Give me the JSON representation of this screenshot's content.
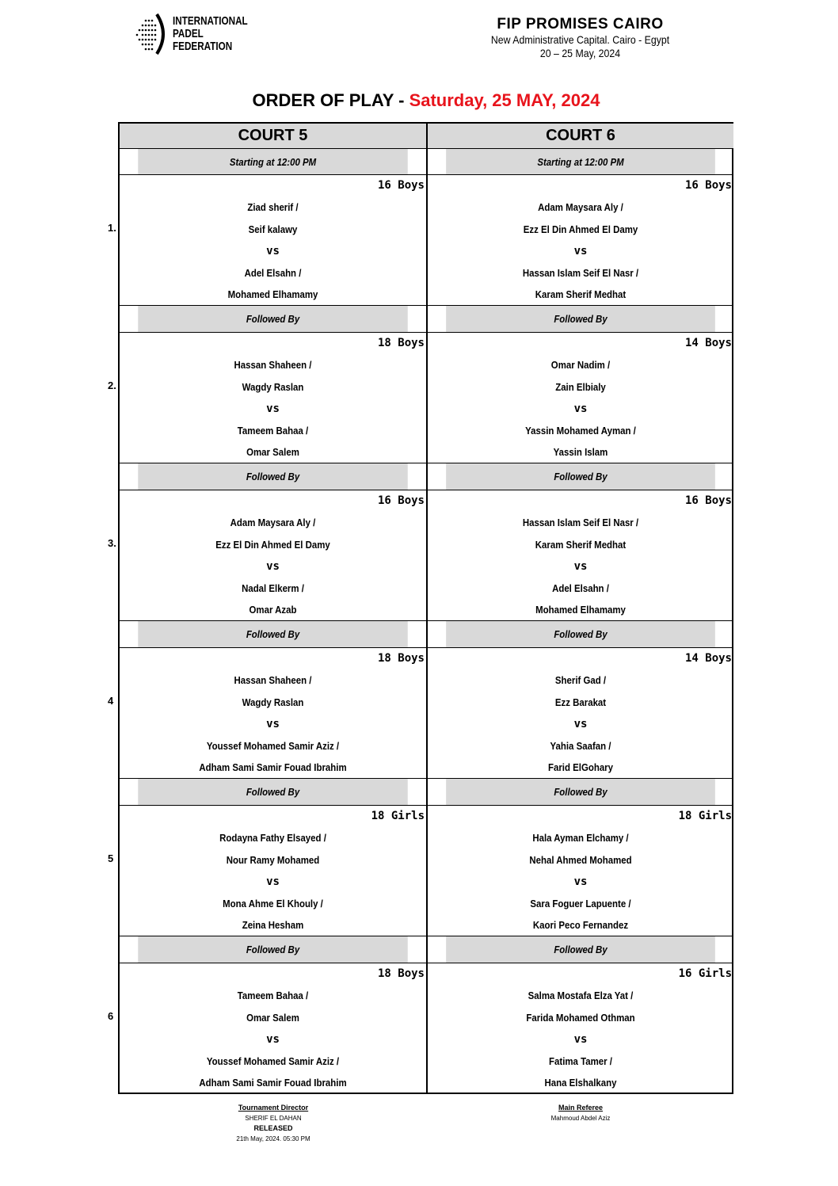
{
  "header": {
    "logo_text": [
      "INTERNATIONAL",
      "PADEL",
      "FEDERATION"
    ],
    "event": "FIP PROMISES CAIRO",
    "venue": "New Administrative Capital. Cairo - Egypt",
    "dates": "20 – 25 May, 2024"
  },
  "title": {
    "prefix": "ORDER OF PLAY - ",
    "date": "Saturday, 25 MAY, 2024",
    "date_color": "#e8141c"
  },
  "courts": [
    {
      "name": "COURT 5",
      "start": "Starting at 12:00 PM"
    },
    {
      "name": "COURT 6",
      "start": "Starting at 12:00 PM"
    }
  ],
  "followed_by": "Followed By",
  "vs": "vs",
  "slots": [
    {
      "number": "1.",
      "matches": [
        {
          "category": "16 Boys",
          "team1": [
            "Ziad sherif /",
            "Seif kalawy"
          ],
          "team2": [
            "Adel Elsahn /",
            "Mohamed Elhamamy"
          ]
        },
        {
          "category": "16 Boys",
          "team1": [
            "Adam Maysara Aly /",
            "Ezz El Din Ahmed El Damy"
          ],
          "team2": [
            "Hassan Islam Seif El Nasr /",
            "Karam Sherif Medhat"
          ]
        }
      ]
    },
    {
      "number": "2.",
      "matches": [
        {
          "category": "18 Boys",
          "team1": [
            "Hassan Shaheen /",
            "Wagdy Raslan"
          ],
          "team2": [
            "Tameem Bahaa /",
            "Omar Salem"
          ]
        },
        {
          "category": "14 Boys",
          "team1": [
            "Omar Nadim /",
            "Zain Elbialy"
          ],
          "team2": [
            "Yassin Mohamed Ayman /",
            "Yassin Islam"
          ]
        }
      ]
    },
    {
      "number": "3.",
      "matches": [
        {
          "category": "16 Boys",
          "team1": [
            "Adam Maysara Aly /",
            "Ezz El Din Ahmed El Damy"
          ],
          "team2": [
            "Nadal Elkerm /",
            "Omar Azab"
          ]
        },
        {
          "category": "16 Boys",
          "team1": [
            "Hassan Islam Seif El Nasr /",
            "Karam Sherif Medhat"
          ],
          "team2": [
            "Adel Elsahn /",
            "Mohamed Elhamamy"
          ]
        }
      ]
    },
    {
      "number": "4",
      "matches": [
        {
          "category": "18 Boys",
          "team1": [
            "Hassan Shaheen /",
            "Wagdy Raslan"
          ],
          "team2": [
            "Youssef Mohamed Samir Aziz /",
            "Adham Sami Samir Fouad Ibrahim"
          ]
        },
        {
          "category": "14 Boys",
          "team1": [
            "Sherif Gad /",
            "Ezz Barakat"
          ],
          "team2": [
            "Yahia Saafan /",
            "Farid ElGohary"
          ]
        }
      ]
    },
    {
      "number": "5",
      "matches": [
        {
          "category": "18 Girls",
          "team1": [
            "Rodayna Fathy Elsayed /",
            "Nour Ramy Mohamed"
          ],
          "team2": [
            "Mona Ahme El Khouly /",
            "Zeina Hesham"
          ]
        },
        {
          "category": "18 Girls",
          "team1": [
            "Hala Ayman Elchamy /",
            "Nehal Ahmed Mohamed"
          ],
          "team2": [
            "Sara Foguer Lapuente /",
            "Kaori Peco Fernandez"
          ]
        }
      ]
    },
    {
      "number": "6",
      "matches": [
        {
          "category": "18 Boys",
          "team1": [
            "Tameem Bahaa /",
            "Omar Salem"
          ],
          "team2": [
            "Youssef Mohamed Samir Aziz /",
            "Adham Sami Samir Fouad Ibrahim"
          ]
        },
        {
          "category": "16 Girls",
          "team1": [
            "Salma Mostafa Elza Yat /",
            "Farida Mohamed Othman"
          ],
          "team2": [
            "Fatima Tamer /",
            "Hana Elshalkany"
          ]
        }
      ]
    }
  ],
  "footer": {
    "director_label": "Tournament Director",
    "director_name": "SHERIF EL DAHAN",
    "status": "RELEASED",
    "released_at": "21th May, 2024. 05:30 PM",
    "referee_label": "Main Referee",
    "referee_name": "Mahmoud Abdel Aziz"
  }
}
